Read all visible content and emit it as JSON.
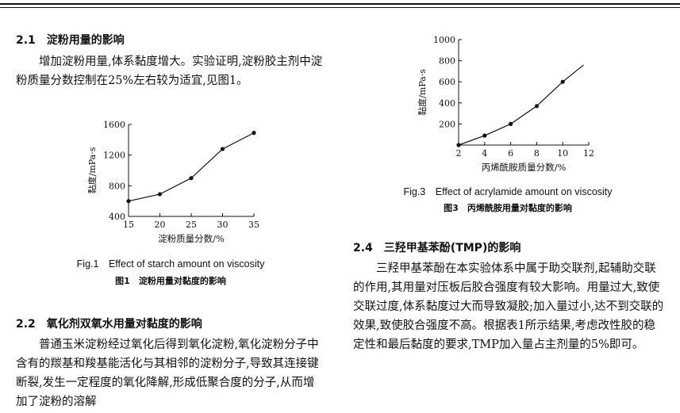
{
  "left": {
    "s21_title": "2.1　淀粉用量的影响",
    "s21_para": "增加淀粉用量,体系黏度增大。实验证明,淀粉胶主剂中淀粉质量分数控制在25%左右较为适宜,见图1。",
    "fig1_caption_en": "Fig.1　Effect of starch amount on viscosity",
    "fig1_caption_cn": "图1　淀粉用量对黏度的影响",
    "s22_title": "2.2　氧化剂双氧水用量对黏度的影响",
    "s22_para": "普通玉米淀粉经过氧化后得到氧化淀粉,氧化淀粉分子中含有的羰基和羧基能活化与其相邻的淀粉分子,导致其连接键断裂,发生一定程度的氧化降解,形成低聚合度的分子,从而增加了淀粉的溶解"
  },
  "right": {
    "fig3_caption_en": "Fig.3　Effect of acrylamide amount on viscosity",
    "fig3_caption_cn": "图3　丙烯酰胺用量对黏度的影响",
    "s24_title": "2.4　三羟甲基苯酚(TMP)的影响",
    "s24_para": "三羟甲基苯酚在本实验体系中属于助交联剂,起辅助交联的作用,其用量对压板后胶合强度有较大影响。用量过大,致使交联过度,体系黏度过大而导致凝胶;加入量过小,达不到交联的效果,致使胶合强度不高。根据表1所示结果,考虑改性胶的稳定性和最后黏度的要求,TMP加入量占主剂量的5%即可。"
  },
  "chart_data": [
    {
      "type": "line",
      "xlabel": "淀粉质量分数/%",
      "ylabel": "黏度/mPa·s",
      "x": [
        15,
        20,
        25,
        30,
        35
      ],
      "y": [
        600,
        690,
        900,
        1280,
        1490
      ],
      "xlim": [
        15,
        35
      ],
      "ylim": [
        400,
        1600
      ],
      "xticks": [
        "15",
        "20",
        "25",
        "30",
        "35"
      ],
      "yticks": [
        "400",
        "800",
        "1200",
        "1600"
      ]
    },
    {
      "type": "line",
      "xlabel": "丙烯酰胺质量分数/%",
      "ylabel": "黏度/mPa·s",
      "x": [
        2,
        4,
        6,
        8,
        10
      ],
      "y": [
        0,
        90,
        200,
        370,
        600
      ],
      "xlim": [
        2,
        12
      ],
      "ylim": [
        0,
        1000
      ],
      "xticks": [
        "2",
        "4",
        "6",
        "8",
        "10",
        "12"
      ],
      "yticks": [
        "200",
        "400",
        "600",
        "800",
        "1000"
      ]
    }
  ]
}
